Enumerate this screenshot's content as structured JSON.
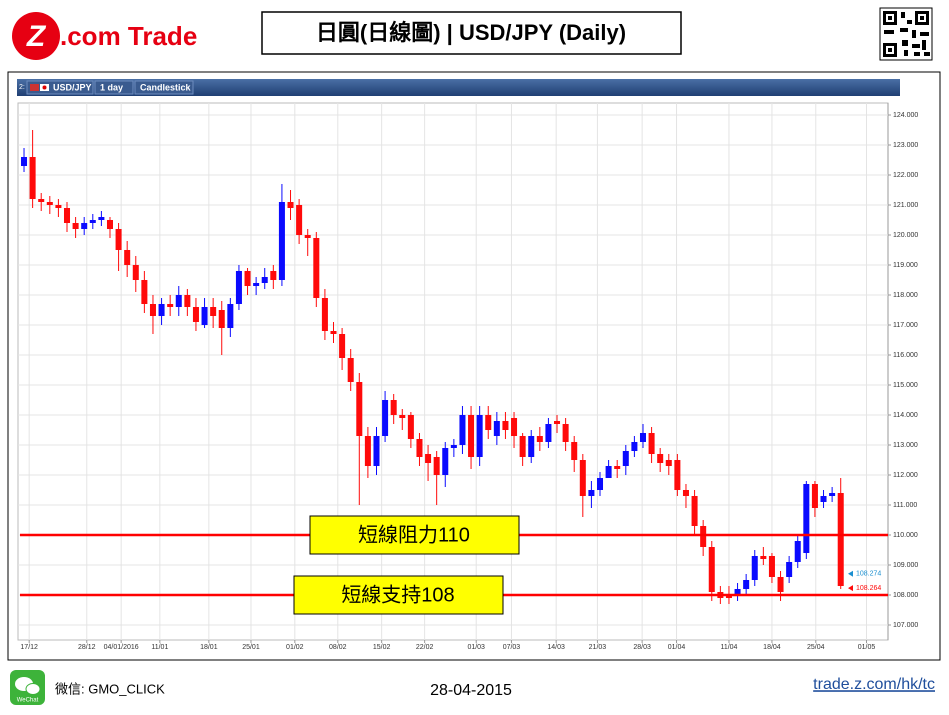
{
  "header": {
    "logo_mark": "Z",
    "logo_text": ".com Trade",
    "title": "日圓(日線圖) | USD/JPY (Daily)"
  },
  "toolbar": {
    "index": "2:",
    "symbol": "USD/JPY",
    "interval": "1 day",
    "style": "Candlestick"
  },
  "chart_data": {
    "type": "candlestick",
    "open": [
      122.3,
      122.6,
      121.2,
      121.1,
      121.0,
      120.9,
      120.4,
      120.2,
      120.4,
      120.5,
      120.5,
      120.2,
      119.5,
      119.0,
      118.5,
      117.7,
      117.3,
      117.7,
      117.6,
      118.0,
      117.6,
      117.0,
      117.6,
      117.5,
      116.9,
      117.7,
      118.8,
      118.3,
      118.4,
      118.8,
      118.5,
      121.1,
      121.0,
      120.0,
      119.9,
      117.9,
      116.8,
      116.7,
      115.9,
      115.1,
      113.3,
      112.3,
      113.3,
      114.5,
      114.0,
      114.0,
      113.2,
      112.7,
      112.6,
      112.0,
      112.9,
      113.0,
      114.0,
      112.6,
      114.0,
      113.3,
      113.8,
      113.9,
      113.3,
      112.6,
      113.3,
      113.1,
      113.8,
      113.7,
      113.1,
      112.5,
      111.3,
      111.5,
      111.9,
      112.3,
      112.3,
      112.8,
      113.1,
      113.4,
      112.7,
      112.5,
      112.5,
      111.5,
      111.3,
      110.3,
      109.6,
      108.1,
      108.0,
      108.0,
      108.2,
      108.5,
      109.3,
      109.3,
      108.6,
      108.6,
      109.1,
      109.4,
      111.7,
      111.1,
      111.3,
      111.4
    ],
    "high": [
      122.9,
      123.5,
      121.4,
      121.3,
      121.2,
      121.1,
      120.6,
      120.6,
      120.7,
      120.8,
      120.6,
      120.4,
      119.8,
      119.3,
      118.8,
      118.0,
      117.9,
      118.0,
      118.3,
      118.2,
      117.9,
      117.9,
      117.9,
      117.8,
      117.9,
      119.0,
      118.9,
      118.6,
      118.9,
      119.0,
      121.7,
      121.5,
      121.2,
      120.2,
      120.1,
      118.2,
      117.1,
      116.9,
      116.2,
      115.4,
      113.6,
      113.6,
      114.8,
      114.7,
      114.2,
      114.1,
      113.4,
      113.0,
      112.8,
      113.1,
      113.2,
      114.3,
      114.3,
      114.3,
      114.3,
      114.1,
      114.1,
      114.1,
      113.4,
      113.5,
      113.6,
      113.9,
      114.0,
      113.9,
      113.3,
      112.7,
      111.8,
      112.1,
      112.5,
      112.5,
      113.0,
      113.3,
      113.7,
      113.6,
      112.9,
      112.7,
      112.7,
      111.7,
      111.5,
      110.5,
      109.8,
      108.3,
      108.3,
      108.4,
      108.7,
      109.5,
      109.6,
      109.4,
      108.8,
      109.3,
      110.0,
      111.8,
      111.8,
      111.5,
      111.6,
      111.9
    ],
    "low": [
      122.1,
      120.9,
      120.8,
      120.7,
      120.6,
      120.1,
      119.9,
      120.0,
      120.2,
      120.3,
      119.9,
      118.8,
      118.6,
      118.1,
      117.4,
      116.7,
      117.0,
      117.3,
      117.3,
      117.3,
      116.8,
      116.9,
      116.9,
      116.0,
      116.6,
      117.5,
      118.0,
      118.0,
      118.2,
      118.2,
      118.3,
      120.5,
      119.7,
      119.3,
      117.6,
      116.5,
      116.4,
      115.5,
      114.8,
      111.0,
      111.9,
      112.0,
      113.1,
      113.7,
      113.5,
      112.9,
      112.3,
      111.8,
      111.0,
      111.6,
      112.6,
      112.7,
      112.2,
      112.3,
      113.2,
      113.0,
      113.2,
      112.9,
      112.3,
      112.4,
      112.8,
      112.9,
      113.4,
      112.8,
      112.1,
      110.6,
      110.9,
      111.3,
      111.9,
      111.9,
      112.0,
      112.6,
      112.9,
      112.4,
      112.1,
      112.0,
      111.3,
      110.9,
      110.0,
      109.3,
      107.8,
      107.7,
      107.7,
      107.8,
      108.0,
      108.3,
      109.0,
      108.4,
      107.8,
      108.4,
      108.9,
      109.2,
      110.6,
      110.9,
      111.1,
      108.2
    ],
    "close": [
      122.6,
      121.2,
      121.1,
      121.0,
      120.9,
      120.4,
      120.2,
      120.4,
      120.5,
      120.6,
      120.2,
      119.5,
      119.0,
      118.5,
      117.7,
      117.3,
      117.7,
      117.6,
      118.0,
      117.6,
      117.1,
      117.6,
      117.3,
      116.9,
      117.7,
      118.8,
      118.3,
      118.4,
      118.6,
      118.5,
      121.1,
      120.9,
      120.0,
      119.9,
      117.9,
      116.8,
      116.7,
      115.9,
      115.1,
      113.3,
      112.3,
      113.3,
      114.5,
      114.0,
      113.9,
      113.2,
      112.6,
      112.4,
      112.0,
      112.9,
      113.0,
      114.0,
      112.6,
      114.0,
      113.5,
      113.8,
      113.5,
      113.3,
      112.6,
      113.3,
      113.1,
      113.7,
      113.7,
      113.1,
      112.5,
      111.3,
      111.5,
      111.9,
      112.3,
      112.2,
      112.8,
      113.1,
      113.4,
      112.7,
      112.4,
      112.3,
      111.5,
      111.3,
      110.3,
      109.6,
      108.1,
      107.9,
      107.9,
      108.2,
      108.5,
      109.3,
      109.2,
      108.6,
      108.1,
      109.1,
      109.8,
      111.7,
      110.9,
      111.3,
      111.4,
      108.3
    ],
    "up_color": "#0a0aff",
    "down_color": "#ff0a0a",
    "xlim": [
      -0.7,
      100.5
    ],
    "xticks": [
      {
        "value": 0.6,
        "label": "17/12"
      },
      {
        "value": 7.3,
        "label": "28/12"
      },
      {
        "value": 11.3,
        "label": "04/01/2016"
      },
      {
        "value": 15.8,
        "label": "11/01"
      },
      {
        "value": 21.5,
        "label": "18/01"
      },
      {
        "value": 26.4,
        "label": "25/01"
      },
      {
        "value": 31.5,
        "label": "01/02"
      },
      {
        "value": 36.5,
        "label": "08/02"
      },
      {
        "value": 41.6,
        "label": "15/02"
      },
      {
        "value": 46.6,
        "label": "22/02"
      },
      {
        "value": 52.6,
        "label": "01/03"
      },
      {
        "value": 56.7,
        "label": "07/03"
      },
      {
        "value": 61.9,
        "label": "14/03"
      },
      {
        "value": 66.7,
        "label": "21/03"
      },
      {
        "value": 71.9,
        "label": "28/03"
      },
      {
        "value": 75.9,
        "label": "01/04"
      },
      {
        "value": 82,
        "label": "11/04"
      },
      {
        "value": 87,
        "label": "18/04"
      },
      {
        "value": 92.1,
        "label": "25/04"
      },
      {
        "value": 98,
        "label": "01/05"
      }
    ],
    "ylim": [
      106.5,
      124.4
    ],
    "yticks": [
      {
        "value": 107,
        "label": "107.000"
      },
      {
        "value": 108,
        "label": "108.000"
      },
      {
        "value": 109,
        "label": "109.000"
      },
      {
        "value": 110,
        "label": "110.000"
      },
      {
        "value": 111,
        "label": "111.000"
      },
      {
        "value": 112,
        "label": "112.000"
      },
      {
        "value": 113,
        "label": "113.000"
      },
      {
        "value": 114,
        "label": "114.000"
      },
      {
        "value": 115,
        "label": "115.000"
      },
      {
        "value": 116,
        "label": "116.000"
      },
      {
        "value": 117,
        "label": "117.000"
      },
      {
        "value": 118,
        "label": "118.000"
      },
      {
        "value": 119,
        "label": "119.000"
      },
      {
        "value": 120,
        "label": "120.000"
      },
      {
        "value": 121,
        "label": "121.000"
      },
      {
        "value": 122,
        "label": "122.000"
      },
      {
        "value": 123,
        "label": "123.000"
      },
      {
        "value": 124,
        "label": "124.000"
      }
    ],
    "grid": true,
    "hlines": [
      {
        "value": 110,
        "label": "短線阻力110",
        "color": "#ff0000"
      },
      {
        "value": 108,
        "label": "短線支持108",
        "color": "#ff0000"
      }
    ],
    "last_prices": [
      {
        "value": 108.274,
        "color": "#1a8fd0"
      },
      {
        "value": 108.264,
        "color": "#ff0a0a"
      }
    ]
  },
  "footer": {
    "wechat_icon": "WeChat",
    "wechat_id": "微信: GMO_CLICK",
    "date": "28-04-2015",
    "link": "trade.z.com/hk/tc"
  }
}
